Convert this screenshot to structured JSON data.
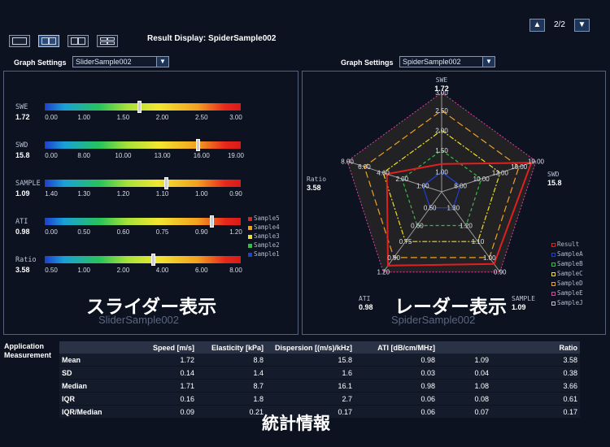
{
  "header": {
    "title": "Result Display: SpiderSample002",
    "pager": "2/2",
    "layout_buttons": [
      "single",
      "dual-active",
      "dual-split",
      "quad"
    ]
  },
  "slider_panel": {
    "graph_settings_label": "Graph Settings",
    "selected": "SliderSample002",
    "heading_jp": "スライダー表示",
    "subtitle": "SliderSample002",
    "sliders": [
      {
        "name": "SWE",
        "value": "1.72",
        "ticks": [
          "0.00",
          "1.00",
          "1.50",
          "2.00",
          "2.50",
          "3.00"
        ],
        "position": 0.48
      },
      {
        "name": "SWD",
        "value": "15.8",
        "ticks": [
          "0.00",
          "8.00",
          "10.00",
          "13.00",
          "16.00",
          "19.00"
        ],
        "position": 0.78
      },
      {
        "name": "SAMPLE",
        "value": "1.09",
        "ticks": [
          "1.40",
          "1.30",
          "1.20",
          "1.10",
          "1.00",
          "0.90"
        ],
        "position": 0.62
      },
      {
        "name": "ATI",
        "value": "0.98",
        "ticks": [
          "0.00",
          "0.50",
          "0.60",
          "0.75",
          "0.90",
          "1.20"
        ],
        "position": 0.85
      },
      {
        "name": "Ratio",
        "value": "3.58",
        "ticks": [
          "0.50",
          "1.00",
          "2.00",
          "4.00",
          "6.00",
          "8.00"
        ],
        "position": 0.55
      }
    ],
    "legend": [
      {
        "label": "Sample5",
        "color": "#e02020"
      },
      {
        "label": "Sample4",
        "color": "#f0a020"
      },
      {
        "label": "Sample3",
        "color": "#f0e020"
      },
      {
        "label": "Sample2",
        "color": "#30c040"
      },
      {
        "label": "Sample1",
        "color": "#2040d0"
      }
    ]
  },
  "radar_panel": {
    "graph_settings_label": "Graph Settings",
    "selected": "SpiderSample002",
    "heading_jp": "レーダー表示",
    "subtitle": "SpiderSample002",
    "axes": [
      {
        "name": "SWE",
        "value": "1.72",
        "ticks": [
          "1.00",
          "1.50",
          "2.00",
          "2.50",
          "3.00"
        ]
      },
      {
        "name": "SWD",
        "value": "15.8",
        "ticks": [
          "8.00",
          "10.00",
          "13.00",
          "16.00",
          "19.00"
        ]
      },
      {
        "name": "SAMPLE",
        "value": "1.09",
        "ticks": [
          "1.30",
          "1.20",
          "1.10",
          "1.00",
          "0.90"
        ]
      },
      {
        "name": "ATI",
        "value": "0.98",
        "ticks": [
          "0.50",
          "0.60",
          "0.75",
          "0.90",
          "1.20"
        ]
      },
      {
        "name": "Ratio",
        "value": "3.58",
        "ticks": [
          "1.00",
          "2.00",
          "4.00",
          "6.00",
          "8.00"
        ]
      }
    ],
    "result_levels": [
      0.28,
      0.95,
      0.9,
      0.92,
      0.58
    ],
    "legend": [
      {
        "label": "Result",
        "color": "#e02020"
      },
      {
        "label": "SampleA",
        "color": "#2040d0"
      },
      {
        "label": "SampleB",
        "color": "#30c040"
      },
      {
        "label": "SampleC",
        "color": "#f0e020"
      },
      {
        "label": "SampleD",
        "color": "#f0a020"
      },
      {
        "label": "SampleE",
        "color": "#e040a0"
      },
      {
        "label": "SampleJ",
        "color": "#c0c0c0"
      }
    ]
  },
  "stats": {
    "label_line1": "Application",
    "label_line2": "Measurement",
    "heading_jp": "統計情報",
    "columns": [
      "",
      "Speed [m/s]",
      "Elasticity [kPa]",
      "Dispersion [(m/s)/kHz]",
      "ATI [dB/cm/MHz]",
      "",
      "Ratio"
    ],
    "rows": [
      [
        "Mean",
        "1.72",
        "8.8",
        "15.8",
        "0.98",
        "1.09",
        "3.58"
      ],
      [
        "SD",
        "0.14",
        "1.4",
        "1.6",
        "0.03",
        "0.04",
        "0.38"
      ],
      [
        "Median",
        "1.71",
        "8.7",
        "16.1",
        "0.98",
        "1.08",
        "3.66"
      ],
      [
        "IQR",
        "0.16",
        "1.8",
        "2.7",
        "0.06",
        "0.08",
        "0.61"
      ],
      [
        "IQR/Median",
        "0.09",
        "0.21",
        "0.17",
        "0.06",
        "0.07",
        "0.17"
      ]
    ]
  }
}
